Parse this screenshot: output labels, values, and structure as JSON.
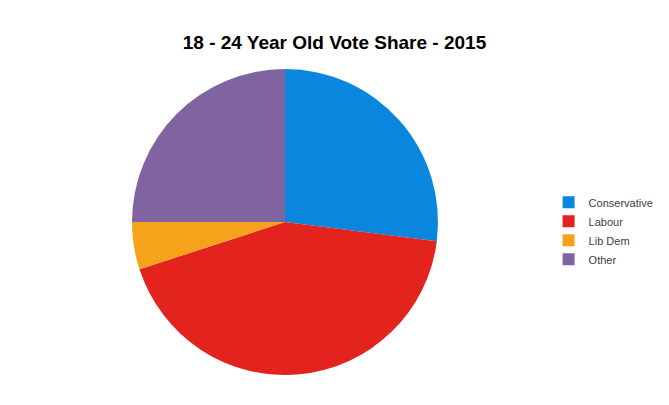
{
  "chart_data": {
    "type": "pie",
    "title": "18 - 24 Year Old Vote Share - 2015",
    "categories": [
      "Conservative",
      "Labour",
      "Lib Dem",
      "Other"
    ],
    "values": [
      27,
      43,
      5,
      25
    ],
    "colors": [
      "#0b86de",
      "#e2231e",
      "#f7a21b",
      "#8064a2"
    ],
    "legend": "right",
    "data_labels": false
  }
}
